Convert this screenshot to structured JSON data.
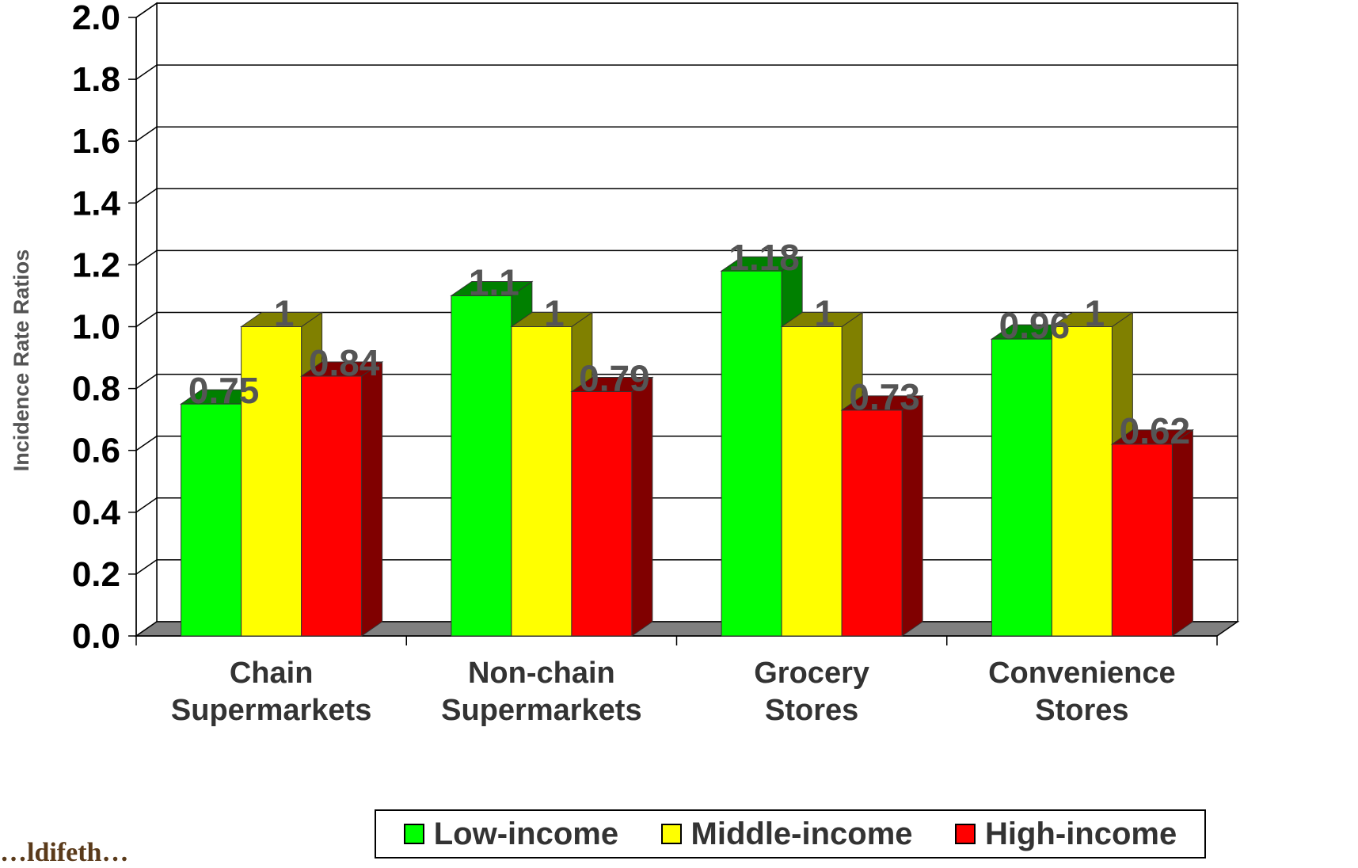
{
  "chart_data": {
    "type": "bar",
    "ylabel": "Incidence Rate Ratios",
    "ylim": [
      0,
      2.0
    ],
    "y_ticks": [
      "0.0",
      "0.2",
      "0.4",
      "0.6",
      "0.8",
      "1.0",
      "1.2",
      "1.4",
      "1.6",
      "1.8",
      "2.0"
    ],
    "grid": true,
    "legend_position": "bottom",
    "categories": [
      [
        "Chain",
        "Supermarkets"
      ],
      [
        "Non-chain",
        "Supermarkets"
      ],
      [
        "Grocery",
        "Stores"
      ],
      [
        "Convenience",
        "Stores"
      ]
    ],
    "series": [
      {
        "name": "Low-income",
        "values": [
          0.75,
          1.1,
          1.18,
          0.96
        ],
        "labels": [
          "0.75",
          "1.1",
          "1.18",
          "0.96"
        ],
        "color": "#00ff00",
        "side_color": "#008000"
      },
      {
        "name": "Middle-income",
        "values": [
          1,
          1,
          1,
          1
        ],
        "labels": [
          "1",
          "1",
          "1",
          "1"
        ],
        "color": "#ffff00",
        "side_color": "#808000"
      },
      {
        "name": "High-income",
        "values": [
          0.84,
          0.79,
          0.73,
          0.62
        ],
        "labels": [
          "0.84",
          "0.79",
          "0.73",
          "0.62"
        ],
        "color": "#ff0000",
        "side_color": "#800000"
      }
    ]
  },
  "footer_fragment": "…ldifeth…"
}
